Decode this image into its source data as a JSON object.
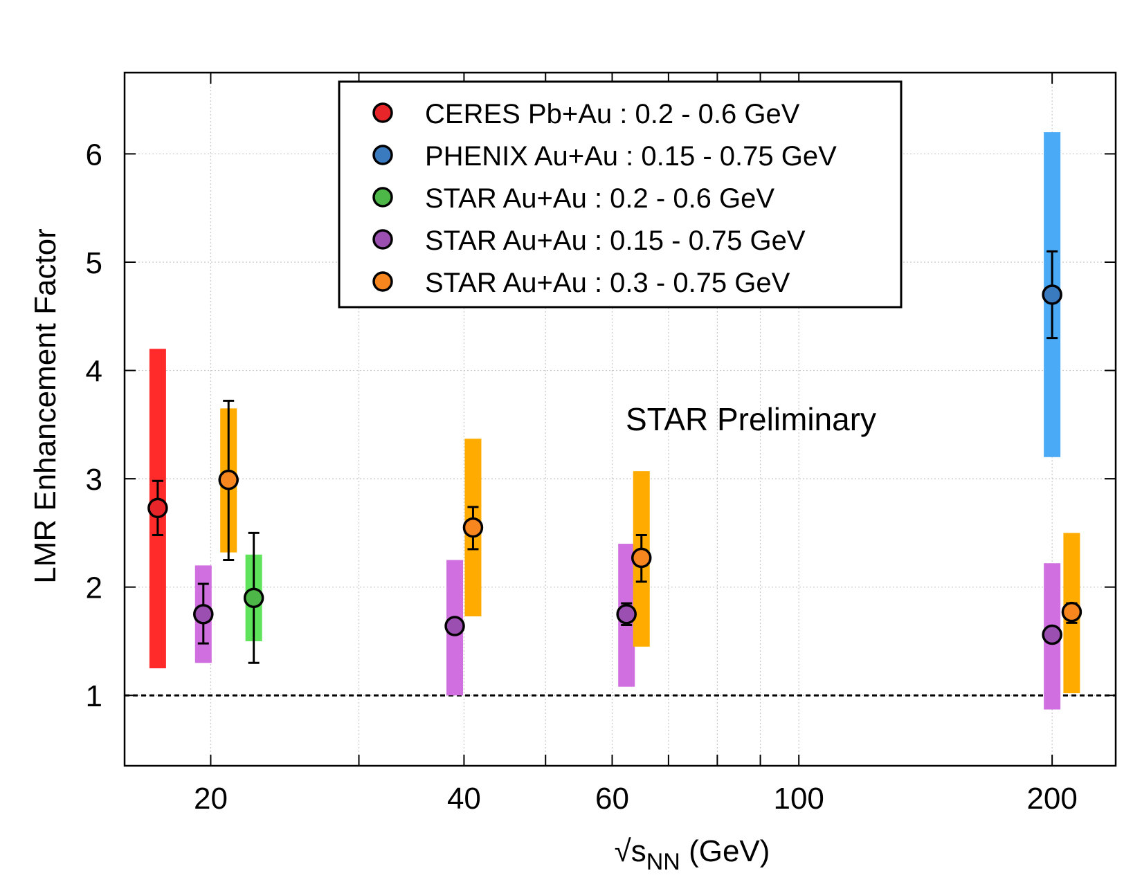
{
  "chart_data": {
    "type": "scatter",
    "xlabel": {
      "main": "√s",
      "sub": "NN",
      "unit": " (GeV)"
    },
    "ylabel": "LMR Enhancement Factor",
    "x_scale": "log",
    "xlim": [
      15.8,
      238
    ],
    "ylim": [
      0.35,
      6.75
    ],
    "x_ticks": [
      20,
      40,
      60,
      100,
      200
    ],
    "x_minor_ticks": [
      30,
      50,
      70,
      80,
      90
    ],
    "y_ticks": [
      1,
      2,
      3,
      4,
      5,
      6
    ],
    "grid": true,
    "reference_line": {
      "y": 1,
      "style": "dashed"
    },
    "annotation": "STAR Preliminary",
    "legend_position": "top-center",
    "series": [
      {
        "name": "CERES Pb+Au : 0.2 - 0.6 GeV",
        "marker_color": "#e8262a",
        "band_color": "#ff2a2a",
        "points": [
          {
            "x": 17.3,
            "y": 2.73,
            "stat_err": [
              2.48,
              2.98
            ],
            "sys_band": [
              1.25,
              4.2
            ]
          }
        ]
      },
      {
        "name": "PHENIX Au+Au : 0.15 - 0.75 GeV",
        "marker_color": "#3a7bbf",
        "band_color": "#4aaaf6",
        "points": [
          {
            "x": 200,
            "y": 4.7,
            "stat_err": [
              4.3,
              5.1
            ],
            "sys_band": [
              3.2,
              6.2
            ]
          }
        ]
      },
      {
        "name": "STAR Au+Au : 0.2 - 0.6 GeV",
        "marker_color": "#4db848",
        "band_color": "#5ee35a",
        "points": [
          {
            "x": 22.5,
            "y": 1.9,
            "stat_err": [
              1.3,
              2.5
            ],
            "sys_band": [
              1.5,
              2.3
            ]
          }
        ]
      },
      {
        "name": "STAR Au+Au : 0.15 - 0.75 GeV",
        "marker_color": "#9b4fb0",
        "band_color": "#d070e0",
        "points": [
          {
            "x": 19.6,
            "y": 1.75,
            "stat_err": [
              1.48,
              2.03
            ],
            "sys_band": [
              1.3,
              2.2
            ]
          },
          {
            "x": 39,
            "y": 1.64,
            "stat_err": [
              1.59,
              1.69
            ],
            "sys_band": [
              1.0,
              2.25
            ]
          },
          {
            "x": 62.4,
            "y": 1.75,
            "stat_err": [
              1.65,
              1.85
            ],
            "sys_band": [
              1.08,
              2.4
            ]
          },
          {
            "x": 200,
            "y": 1.56,
            "stat_err": [
              1.52,
              1.6
            ],
            "sys_band": [
              0.87,
              2.22
            ]
          }
        ]
      },
      {
        "name": "STAR Au+Au : 0.3 - 0.75 GeV",
        "marker_color": "#f7861f",
        "band_color": "#ffab00",
        "points": [
          {
            "x": 21,
            "y": 2.99,
            "stat_err": [
              2.25,
              3.72
            ],
            "sys_band": [
              2.32,
              3.65
            ]
          },
          {
            "x": 41,
            "y": 2.55,
            "stat_err": [
              2.35,
              2.74
            ],
            "sys_band": [
              1.73,
              3.37
            ]
          },
          {
            "x": 65,
            "y": 2.27,
            "stat_err": [
              2.05,
              2.48
            ],
            "sys_band": [
              1.45,
              3.07
            ]
          },
          {
            "x": 211,
            "y": 1.77,
            "stat_err": [
              1.67,
              1.85
            ],
            "sys_band": [
              1.02,
              2.5
            ]
          }
        ]
      }
    ]
  }
}
